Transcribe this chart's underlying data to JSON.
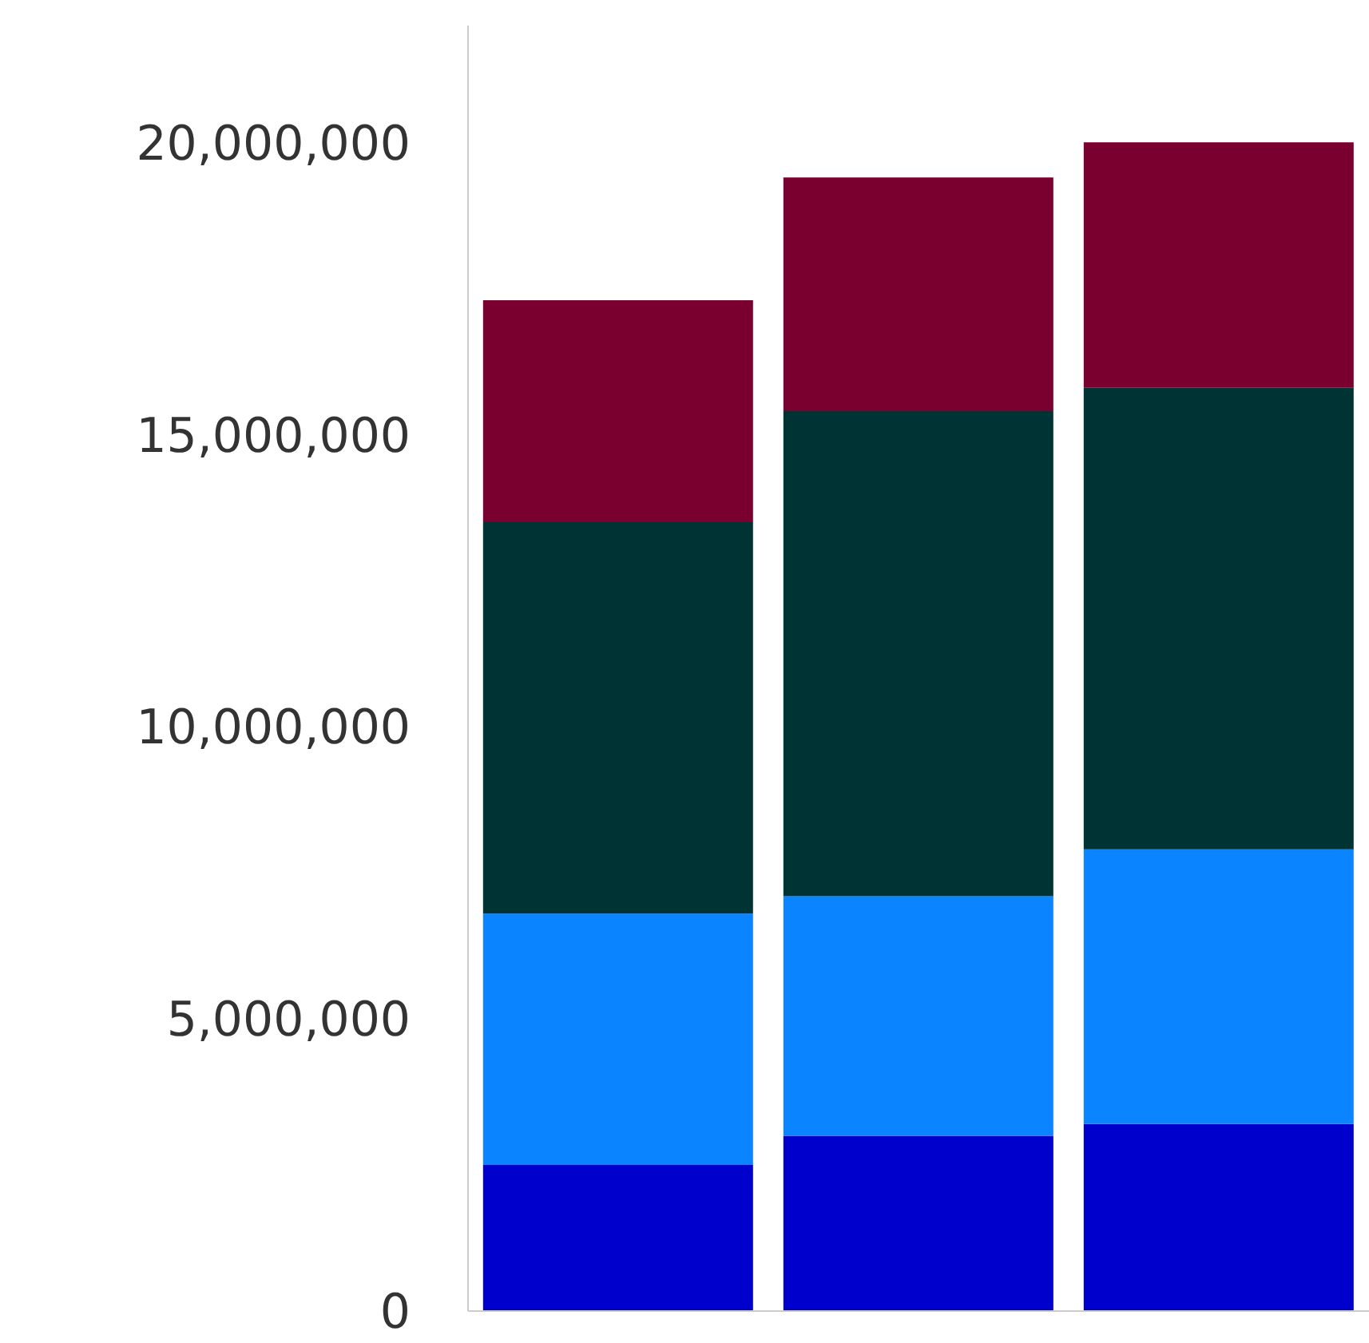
{
  "chart_data": {
    "type": "bar",
    "stacked": true,
    "categories": [
      null,
      null,
      null
    ],
    "series": [
      {
        "color": "#0000cc",
        "values": [
          2500000,
          3000000,
          3200000
        ]
      },
      {
        "color": "#0a84ff",
        "values": [
          4300000,
          4100000,
          4700000
        ]
      },
      {
        "color": "#003333",
        "values": [
          6700000,
          8300000,
          7900000
        ]
      },
      {
        "color": "#7a0030",
        "values": [
          3800000,
          4000000,
          4200000
        ]
      }
    ],
    "ylim": [
      0,
      22000000
    ],
    "yticks": [
      0,
      {
        "value": 5000000,
        "label": "5,000,000"
      },
      {
        "value": 10000000,
        "label": "10,000,000"
      },
      {
        "value": 15000000,
        "label": "15,000,000"
      },
      {
        "value": 20000000,
        "label": "20,000,000"
      }
    ],
    "tick_labels": "y"
  }
}
